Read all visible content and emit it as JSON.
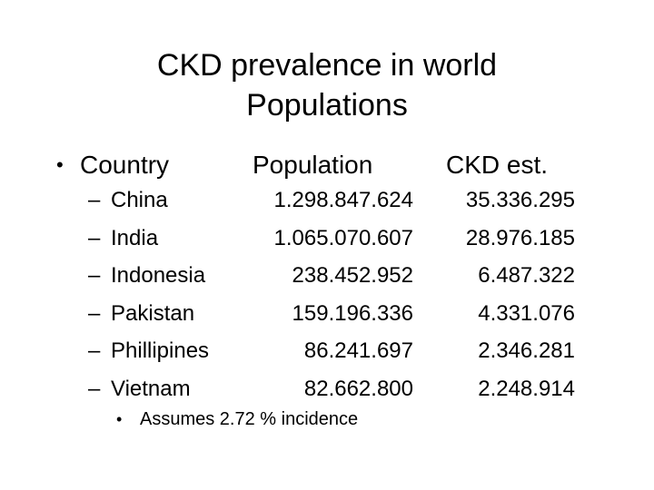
{
  "slide": {
    "title_line1": "CKD prevalence in world",
    "title_line2": "Populations",
    "bullet": "•",
    "header": {
      "country": "Country",
      "population": "Population",
      "ckd": "CKD est."
    },
    "dash": "–",
    "rows": [
      {
        "country": "China",
        "population": "1.298.847.624",
        "ckd": "35.336.295"
      },
      {
        "country": "India",
        "population": "1.065.070.607",
        "ckd": "28.976.185"
      },
      {
        "country": "Indonesia",
        "population": "238.452.952",
        "ckd": "6.487.322"
      },
      {
        "country": "Pakistan",
        "population": "159.196.336",
        "ckd": "4.331.076"
      },
      {
        "country": "Phillipines",
        "population": "86.241.697",
        "ckd": "2.346.281"
      },
      {
        "country": "Vietnam",
        "population": "82.662.800",
        "ckd": "2.248.914"
      }
    ],
    "note_bullet": "•",
    "note": "Assumes 2.72 % incidence"
  }
}
